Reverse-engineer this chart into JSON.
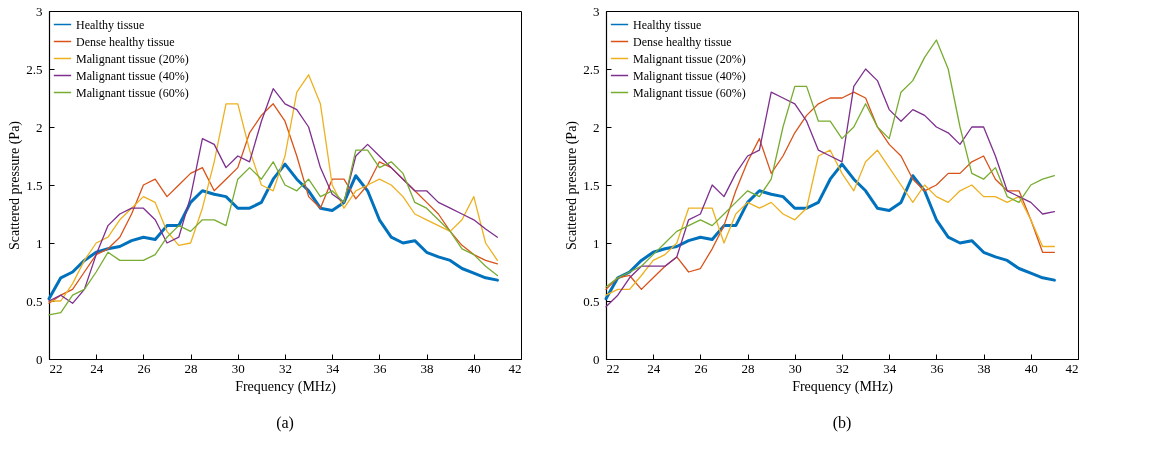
{
  "chart_data": [
    {
      "type": "line",
      "xlabel": "Frequency (MHz)",
      "ylabel": "Scattered pressure (Pa)",
      "annotations": [
        "(a)"
      ],
      "xlim": [
        22,
        42
      ],
      "xticks": [
        22,
        24,
        26,
        28,
        30,
        32,
        34,
        36,
        38,
        40,
        42
      ],
      "ylim": [
        0,
        3
      ],
      "yticks": [
        0,
        0.5,
        1,
        1.5,
        2,
        2.5,
        3
      ],
      "grid": false,
      "legend": "top left",
      "x": [
        22,
        22.5,
        23,
        23.5,
        24,
        24.5,
        25,
        25.5,
        26,
        26.5,
        27,
        27.5,
        28,
        28.5,
        29,
        29.5,
        30,
        30.5,
        31,
        31.5,
        32,
        32.5,
        33,
        33.5,
        34,
        34.5,
        35,
        35.5,
        36,
        36.5,
        37,
        37.5,
        38,
        38.5,
        39,
        39.5,
        40,
        40.5,
        41
      ],
      "series": [
        {
          "name": "Healthy tissue",
          "color": "#0072bd",
          "values": [
            0.52,
            0.7,
            0.75,
            0.85,
            0.92,
            0.95,
            0.97,
            1.02,
            1.05,
            1.03,
            1.15,
            1.15,
            1.35,
            1.45,
            1.42,
            1.4,
            1.3,
            1.3,
            1.35,
            1.55,
            1.68,
            1.55,
            1.45,
            1.3,
            1.28,
            1.35,
            1.58,
            1.45,
            1.2,
            1.05,
            1.0,
            1.02,
            0.92,
            0.88,
            0.85,
            0.78,
            0.74,
            0.7,
            0.68
          ]
        },
        {
          "name": "Dense healthy tissue",
          "color": "#d95319",
          "values": [
            0.48,
            0.55,
            0.6,
            0.75,
            0.9,
            0.95,
            1.05,
            1.25,
            1.5,
            1.55,
            1.4,
            1.5,
            1.6,
            1.65,
            1.45,
            1.55,
            1.65,
            1.95,
            2.1,
            2.2,
            2.05,
            1.75,
            1.4,
            1.3,
            1.55,
            1.55,
            1.38,
            1.5,
            1.7,
            1.65,
            1.55,
            1.45,
            1.35,
            1.25,
            1.1,
            0.98,
            0.9,
            0.85,
            0.82
          ]
        },
        {
          "name": "Malignant tissue (20%)",
          "color": "#edb120",
          "values": [
            0.5,
            0.5,
            0.65,
            0.85,
            1.0,
            1.05,
            1.2,
            1.3,
            1.4,
            1.35,
            1.1,
            0.98,
            1.0,
            1.3,
            1.7,
            2.2,
            2.2,
            1.8,
            1.5,
            1.45,
            1.75,
            2.3,
            2.45,
            2.2,
            1.5,
            1.3,
            1.45,
            1.5,
            1.55,
            1.5,
            1.4,
            1.25,
            1.2,
            1.15,
            1.1,
            1.2,
            1.4,
            1.0,
            0.85
          ]
        },
        {
          "name": "Malignant tissue (40%)",
          "color": "#7e2f8e",
          "values": [
            0.5,
            0.55,
            0.48,
            0.6,
            0.9,
            1.15,
            1.25,
            1.3,
            1.3,
            1.2,
            1.0,
            1.05,
            1.4,
            1.9,
            1.85,
            1.65,
            1.75,
            1.7,
            2.05,
            2.33,
            2.2,
            2.15,
            2.0,
            1.65,
            1.42,
            1.35,
            1.75,
            1.85,
            1.75,
            1.65,
            1.55,
            1.45,
            1.45,
            1.35,
            1.3,
            1.25,
            1.2,
            1.12,
            1.05
          ]
        },
        {
          "name": "Malignant tissue (60%)",
          "color": "#77ac30",
          "values": [
            0.38,
            0.4,
            0.55,
            0.6,
            0.75,
            0.92,
            0.85,
            0.85,
            0.85,
            0.9,
            1.05,
            1.15,
            1.1,
            1.2,
            1.2,
            1.15,
            1.55,
            1.65,
            1.55,
            1.7,
            1.5,
            1.45,
            1.55,
            1.4,
            1.45,
            1.35,
            1.8,
            1.8,
            1.65,
            1.7,
            1.6,
            1.35,
            1.3,
            1.2,
            1.1,
            0.95,
            0.9,
            0.8,
            0.72
          ]
        }
      ]
    },
    {
      "type": "line",
      "xlabel": "Frequency (MHz)",
      "ylabel": "Scattered pressure (Pa)",
      "annotations": [
        "(b)"
      ],
      "xlim": [
        22,
        42
      ],
      "xticks": [
        22,
        24,
        26,
        28,
        30,
        32,
        34,
        36,
        38,
        40,
        42
      ],
      "ylim": [
        0,
        3
      ],
      "yticks": [
        0,
        0.5,
        1,
        1.5,
        2,
        2.5,
        3
      ],
      "grid": false,
      "legend": "top left",
      "x": [
        22,
        22.5,
        23,
        23.5,
        24,
        24.5,
        25,
        25.5,
        26,
        26.5,
        27,
        27.5,
        28,
        28.5,
        29,
        29.5,
        30,
        30.5,
        31,
        31.5,
        32,
        32.5,
        33,
        33.5,
        34,
        34.5,
        35,
        35.5,
        36,
        36.5,
        37,
        37.5,
        38,
        38.5,
        39,
        39.5,
        40,
        40.5,
        41
      ],
      "series": [
        {
          "name": "Healthy tissue",
          "color": "#0072bd",
          "values": [
            0.52,
            0.7,
            0.75,
            0.85,
            0.92,
            0.95,
            0.97,
            1.02,
            1.05,
            1.03,
            1.15,
            1.15,
            1.35,
            1.45,
            1.42,
            1.4,
            1.3,
            1.3,
            1.35,
            1.55,
            1.68,
            1.55,
            1.45,
            1.3,
            1.28,
            1.35,
            1.58,
            1.45,
            1.2,
            1.05,
            1.0,
            1.02,
            0.92,
            0.88,
            0.85,
            0.78,
            0.74,
            0.7,
            0.68
          ]
        },
        {
          "name": "Dense healthy tissue",
          "color": "#d95319",
          "values": [
            0.6,
            0.7,
            0.72,
            0.6,
            0.7,
            0.8,
            0.88,
            0.75,
            0.78,
            0.95,
            1.15,
            1.45,
            1.7,
            1.9,
            1.6,
            1.75,
            1.95,
            2.1,
            2.2,
            2.25,
            2.25,
            2.3,
            2.25,
            2.0,
            1.85,
            1.75,
            1.55,
            1.45,
            1.5,
            1.6,
            1.6,
            1.7,
            1.75,
            1.55,
            1.45,
            1.45,
            1.2,
            0.92,
            0.92
          ]
        },
        {
          "name": "Malignant tissue (20%)",
          "color": "#edb120",
          "values": [
            0.55,
            0.6,
            0.6,
            0.72,
            0.85,
            0.9,
            1.0,
            1.3,
            1.3,
            1.3,
            1.0,
            1.25,
            1.35,
            1.3,
            1.35,
            1.25,
            1.2,
            1.3,
            1.75,
            1.8,
            1.6,
            1.45,
            1.7,
            1.8,
            1.65,
            1.5,
            1.35,
            1.5,
            1.4,
            1.35,
            1.45,
            1.5,
            1.4,
            1.4,
            1.35,
            1.4,
            1.2,
            0.97,
            0.97
          ]
        },
        {
          "name": "Malignant tissue (40%)",
          "color": "#7e2f8e",
          "values": [
            0.45,
            0.55,
            0.7,
            0.8,
            0.8,
            0.8,
            0.88,
            1.2,
            1.25,
            1.5,
            1.4,
            1.6,
            1.75,
            1.8,
            2.3,
            2.25,
            2.2,
            2.05,
            1.8,
            1.75,
            1.7,
            2.35,
            2.5,
            2.4,
            2.15,
            2.05,
            2.15,
            2.1,
            2.0,
            1.95,
            1.85,
            2.0,
            2.0,
            1.75,
            1.45,
            1.4,
            1.35,
            1.25,
            1.27
          ]
        },
        {
          "name": "Malignant tissue (60%)",
          "color": "#77ac30",
          "values": [
            0.62,
            0.7,
            0.75,
            0.8,
            0.9,
            1.0,
            1.1,
            1.15,
            1.2,
            1.15,
            1.25,
            1.35,
            1.45,
            1.4,
            1.55,
            2.0,
            2.35,
            2.35,
            2.05,
            2.05,
            1.9,
            2.0,
            2.2,
            2.0,
            1.9,
            2.3,
            2.4,
            2.6,
            2.75,
            2.5,
            2.0,
            1.6,
            1.55,
            1.65,
            1.4,
            1.35,
            1.5,
            1.55,
            1.58
          ]
        }
      ]
    }
  ]
}
